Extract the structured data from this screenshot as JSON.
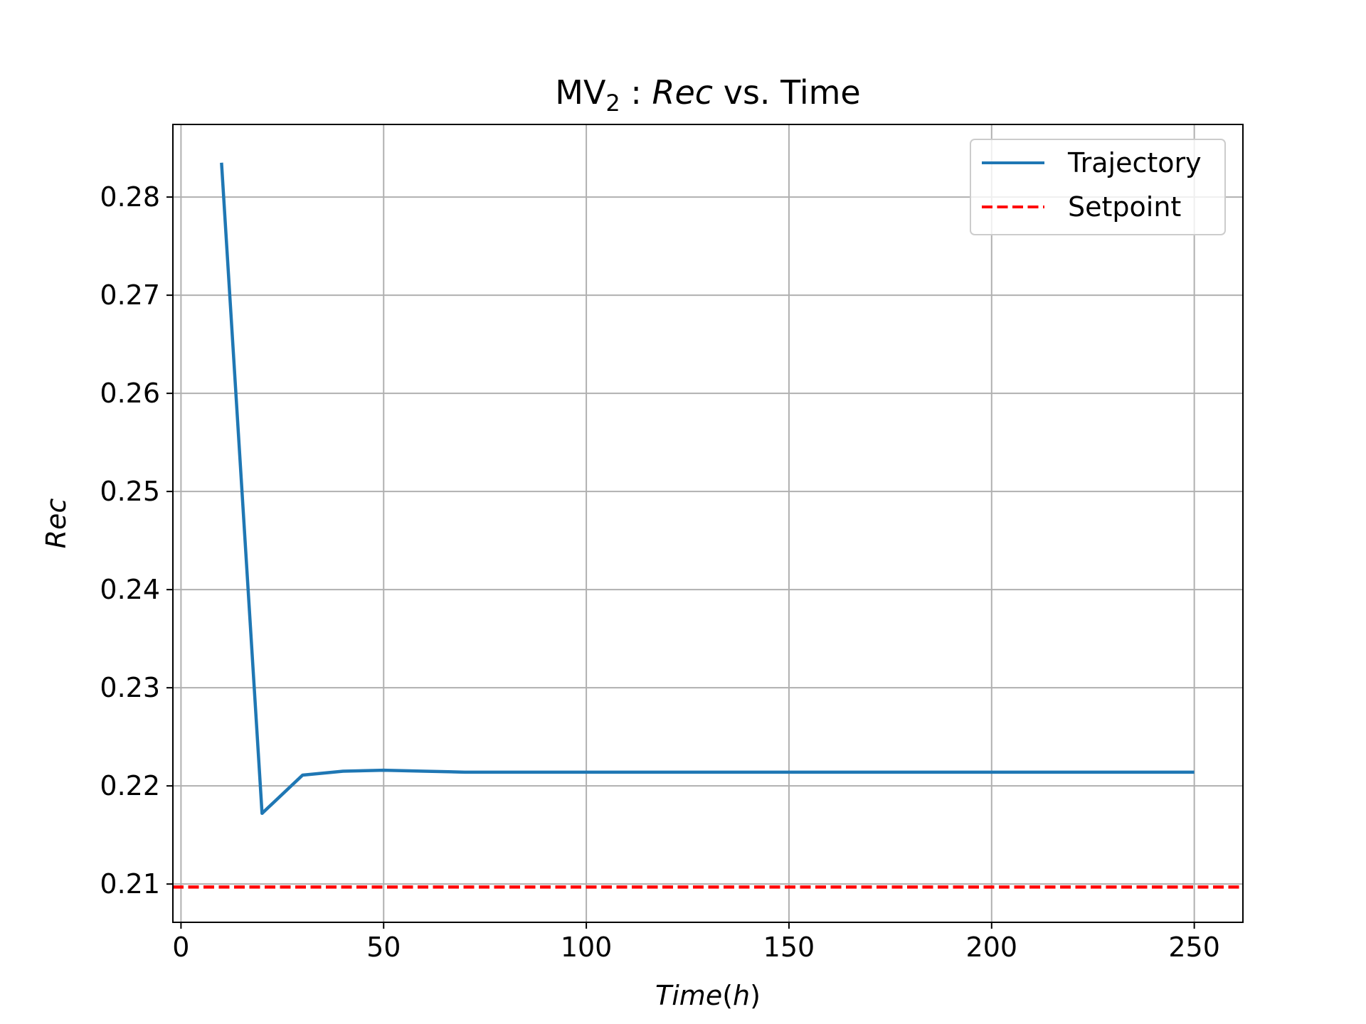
{
  "chart_data": {
    "type": "line",
    "title": {
      "prefix": "MV",
      "subscript": "2",
      "colon": " : ",
      "variable": "Rec",
      "suffix": " vs.  Time"
    },
    "xlabel": {
      "main": "Time",
      "paren_open": "(",
      "unit": "h",
      "paren_close": ")"
    },
    "ylabel": "Rec",
    "xlim": [
      -2,
      262
    ],
    "ylim": [
      0.2061,
      0.2874
    ],
    "xticks": [
      0,
      50,
      100,
      150,
      200,
      250
    ],
    "xtick_labels": [
      "0",
      "50",
      "100",
      "150",
      "200",
      "250"
    ],
    "yticks": [
      0.21,
      0.22,
      0.23,
      0.24,
      0.25,
      0.26,
      0.27,
      0.28
    ],
    "ytick_labels": [
      "0.21",
      "0.22",
      "0.23",
      "0.24",
      "0.25",
      "0.26",
      "0.27",
      "0.28"
    ],
    "grid": true,
    "legend_position": "top-right",
    "series": [
      {
        "name": "Trajectory",
        "color": "#1f77b4",
        "style": "solid",
        "x": [
          10,
          20,
          30,
          40,
          50,
          60,
          70,
          80,
          90,
          100,
          110,
          120,
          130,
          140,
          150,
          160,
          170,
          180,
          190,
          200,
          210,
          220,
          230,
          240,
          250
        ],
        "y": [
          0.2835,
          0.2172,
          0.2211,
          0.2215,
          0.2216,
          0.2215,
          0.2214,
          0.2214,
          0.2214,
          0.2214,
          0.2214,
          0.2214,
          0.2214,
          0.2214,
          0.2214,
          0.2214,
          0.2214,
          0.2214,
          0.2214,
          0.2214,
          0.2214,
          0.2214,
          0.2214,
          0.2214,
          0.2214
        ]
      },
      {
        "name": "Setpoint",
        "color": "#ff0000",
        "style": "dashed",
        "y_constant": 0.2097
      }
    ]
  }
}
